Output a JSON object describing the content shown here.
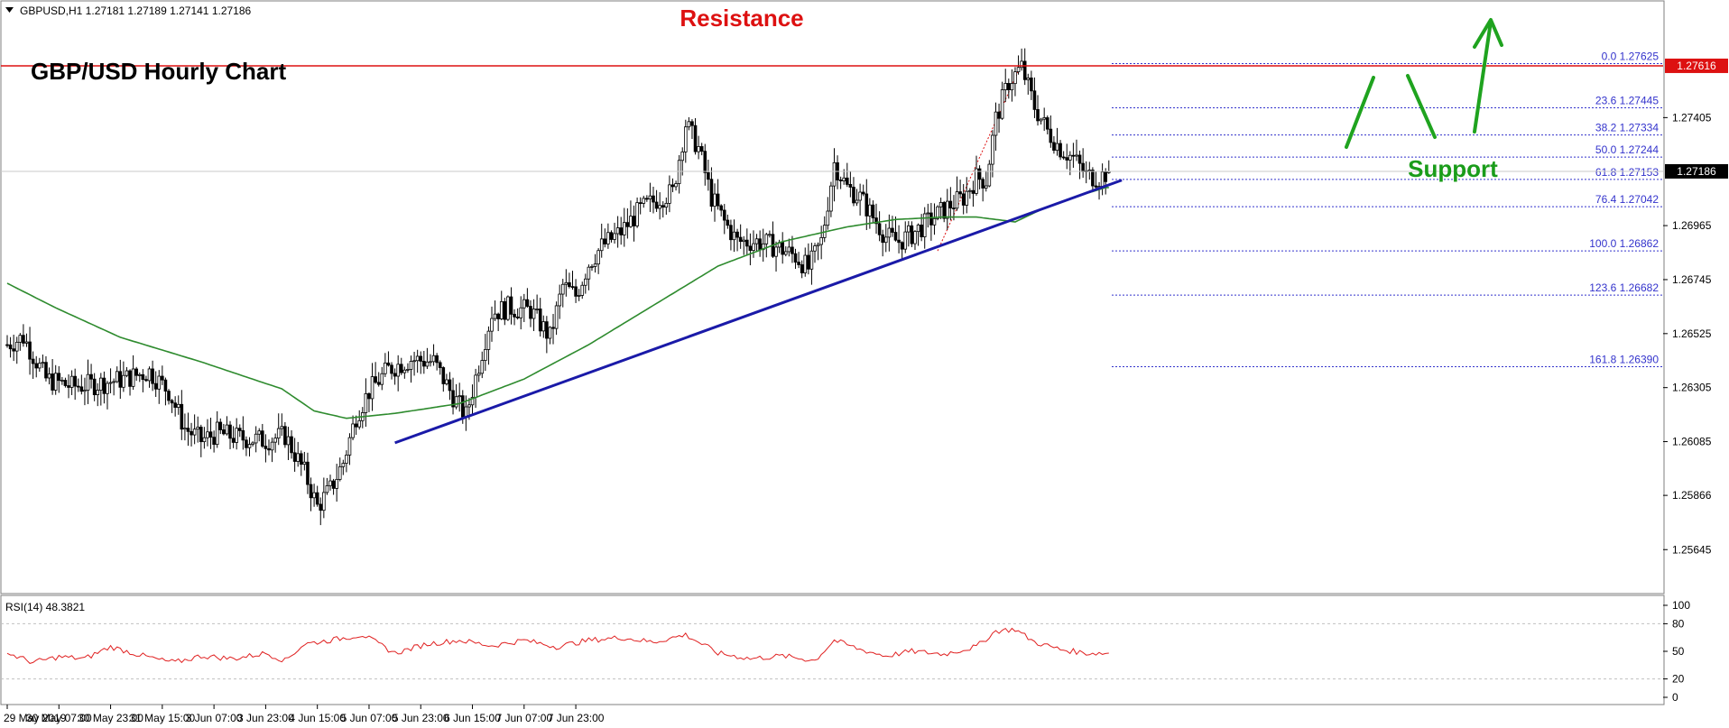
{
  "header": {
    "symbol_line": "GBPUSD,H1  1.27181 1.27189 1.27141 1.27186"
  },
  "chart_data": {
    "type": "candlestick",
    "title": "GBP/USD Hourly Chart",
    "symbol": "GBPUSD",
    "timeframe": "H1",
    "ohlc_header": {
      "open": 1.27181,
      "high": 1.27189,
      "low": 1.27141,
      "close": 1.27186
    },
    "y_ticks": [
      "1.27405",
      "1.26965",
      "1.26745",
      "1.26525",
      "1.26305",
      "1.26085",
      "1.25866",
      "1.25645"
    ],
    "ylim": [
      1.2551,
      1.2784
    ],
    "current_price": "1.27186",
    "resistance": {
      "label": "Resistance",
      "value": "1.27616"
    },
    "support_label": "Support",
    "x_ticks": [
      "29 May 2019",
      "30 May 07:00",
      "30 May 23:00",
      "31 May 15:00",
      "3 Jun 07:00",
      "3 Jun 23:00",
      "4 Jun 15:00",
      "5 Jun 07:00",
      "5 Jun 23:00",
      "6 Jun 15:00",
      "7 Jun 07:00",
      "7 Jun 23:00"
    ],
    "fibonacci": [
      {
        "label": "0.0 1.27625",
        "value": 1.27625
      },
      {
        "label": "23.6 1.27445",
        "value": 1.27445
      },
      {
        "label": "38.2 1.27334",
        "value": 1.27334
      },
      {
        "label": "50.0 1.27244",
        "value": 1.27244
      },
      {
        "label": "61.8 1.27153",
        "value": 1.27153
      },
      {
        "label": "76.4 1.27042",
        "value": 1.27042
      },
      {
        "label": "100.0 1.26862",
        "value": 1.26862
      },
      {
        "label": "123.6 1.26682",
        "value": 1.26682
      },
      {
        "label": "161.8 1.26390",
        "value": 1.2639
      }
    ],
    "close_path": [
      [
        0,
        1.2648
      ],
      [
        5,
        1.2651
      ],
      [
        12,
        1.2634
      ],
      [
        20,
        1.2631
      ],
      [
        28,
        1.2632
      ],
      [
        36,
        1.2634
      ],
      [
        44,
        1.2637
      ],
      [
        50,
        1.2629
      ],
      [
        55,
        1.2614
      ],
      [
        60,
        1.2609
      ],
      [
        65,
        1.2612
      ],
      [
        72,
        1.261
      ],
      [
        80,
        1.2609
      ],
      [
        86,
        1.2611
      ],
      [
        92,
        1.2596
      ],
      [
        96,
        1.2582
      ],
      [
        100,
        1.2589
      ],
      [
        104,
        1.26
      ],
      [
        108,
        1.2619
      ],
      [
        112,
        1.2629
      ],
      [
        118,
        1.2638
      ],
      [
        125,
        1.2642
      ],
      [
        132,
        1.2641
      ],
      [
        138,
        1.2627
      ],
      [
        142,
        1.2619
      ],
      [
        146,
        1.264
      ],
      [
        150,
        1.2661
      ],
      [
        155,
        1.2663
      ],
      [
        162,
        1.2662
      ],
      [
        168,
        1.2651
      ],
      [
        172,
        1.2672
      ],
      [
        176,
        1.2668
      ],
      [
        180,
        1.2681
      ],
      [
        184,
        1.2688
      ],
      [
        190,
        1.2694
      ],
      [
        196,
        1.2703
      ],
      [
        202,
        1.2708
      ],
      [
        206,
        1.271
      ],
      [
        210,
        1.2738
      ],
      [
        214,
        1.2728
      ],
      [
        218,
        1.2708
      ],
      [
        222,
        1.2698
      ],
      [
        226,
        1.269
      ],
      [
        232,
        1.269
      ],
      [
        238,
        1.2688
      ],
      [
        244,
        1.2684
      ],
      [
        248,
        1.2679
      ],
      [
        252,
        1.269
      ],
      [
        256,
        1.2722
      ],
      [
        260,
        1.2712
      ],
      [
        264,
        1.2708
      ],
      [
        268,
        1.27
      ],
      [
        272,
        1.2692
      ],
      [
        276,
        1.269
      ],
      [
        280,
        1.2693
      ],
      [
        284,
        1.2697
      ],
      [
        288,
        1.2701
      ],
      [
        292,
        1.2705
      ],
      [
        296,
        1.2708
      ],
      [
        300,
        1.2716
      ],
      [
        303,
        1.2715
      ],
      [
        306,
        1.274
      ],
      [
        310,
        1.2755
      ],
      [
        314,
        1.2761
      ],
      [
        318,
        1.2745
      ],
      [
        322,
        1.2735
      ],
      [
        326,
        1.2728
      ],
      [
        330,
        1.2724
      ],
      [
        334,
        1.2717
      ],
      [
        338,
        1.2716
      ],
      [
        341,
        1.27186
      ]
    ],
    "ma_path": [
      [
        0,
        1.2673
      ],
      [
        15,
        1.2663
      ],
      [
        35,
        1.2651
      ],
      [
        60,
        1.2641
      ],
      [
        85,
        1.263
      ],
      [
        95,
        1.2621
      ],
      [
        105,
        1.2618
      ],
      [
        120,
        1.262
      ],
      [
        140,
        1.2624
      ],
      [
        160,
        1.2634
      ],
      [
        180,
        1.2648
      ],
      [
        200,
        1.2664
      ],
      [
        220,
        1.268
      ],
      [
        240,
        1.269
      ],
      [
        260,
        1.2696
      ],
      [
        275,
        1.2699
      ],
      [
        290,
        1.27
      ],
      [
        300,
        1.27
      ],
      [
        312,
        1.2698
      ],
      [
        320,
        1.2703
      ],
      [
        330,
        1.2708
      ],
      [
        340,
        1.2712
      ]
    ],
    "trendline": {
      "from": [
        120,
        1.2608
      ],
      "to": [
        345,
        1.2715
      ]
    },
    "rsi": {
      "label": "RSI(14) 48.3821",
      "period": 14,
      "value": 48.3821,
      "levels": [
        "100",
        "80",
        "50",
        "20",
        "0"
      ],
      "ylim": [
        0,
        100
      ],
      "path": [
        [
          0,
          48
        ],
        [
          8,
          38
        ],
        [
          16,
          44
        ],
        [
          24,
          42
        ],
        [
          32,
          55
        ],
        [
          40,
          47
        ],
        [
          48,
          40
        ],
        [
          52,
          38
        ],
        [
          60,
          45
        ],
        [
          70,
          42
        ],
        [
          80,
          48
        ],
        [
          86,
          40
        ],
        [
          92,
          58
        ],
        [
          100,
          62
        ],
        [
          110,
          68
        ],
        [
          120,
          48
        ],
        [
          130,
          58
        ],
        [
          140,
          62
        ],
        [
          150,
          56
        ],
        [
          160,
          62
        ],
        [
          170,
          55
        ],
        [
          180,
          62
        ],
        [
          190,
          65
        ],
        [
          200,
          60
        ],
        [
          210,
          68
        ],
        [
          220,
          48
        ],
        [
          230,
          42
        ],
        [
          240,
          45
        ],
        [
          250,
          40
        ],
        [
          256,
          62
        ],
        [
          264,
          52
        ],
        [
          272,
          45
        ],
        [
          280,
          50
        ],
        [
          290,
          47
        ],
        [
          300,
          55
        ],
        [
          306,
          72
        ],
        [
          312,
          74
        ],
        [
          318,
          60
        ],
        [
          326,
          52
        ],
        [
          334,
          48
        ],
        [
          341,
          48
        ]
      ]
    },
    "colors": {
      "bull_candle": "#ffffff",
      "bear_candle": "#000000",
      "moving_average": "#2e8b2e",
      "trendline": "#1a1aa8",
      "resistance": "#dd1111",
      "fibonacci": "#3333cc",
      "rsi_line": "#e02020",
      "support_text": "#1a9c1a",
      "arrows": "#1fa31f"
    }
  }
}
